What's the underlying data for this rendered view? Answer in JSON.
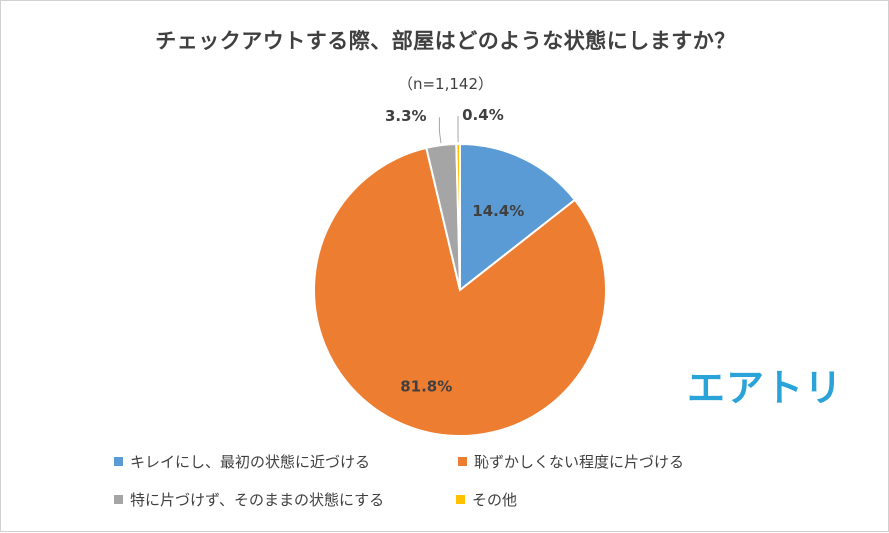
{
  "chart_data": {
    "type": "pie",
    "title": "チェックアウトする際、部屋はどのような状態にしますか？",
    "subtitle": "（n=1,142）",
    "categories": [
      "キレイにし、最初の状態に近づける",
      "恥ずかしくない程度に片づける",
      "特に片づけず、そのままの状態にする",
      "その他"
    ],
    "values": [
      14.4,
      81.8,
      3.3,
      0.4
    ],
    "labels": [
      "14.4%",
      "81.8%",
      "3.3%",
      "0.4%"
    ],
    "colors": [
      "#5b9bd5",
      "#ed7d31",
      "#a5a5a5",
      "#ffc000"
    ],
    "legend_position": "bottom"
  },
  "logo": {
    "text": "エアトリ"
  }
}
